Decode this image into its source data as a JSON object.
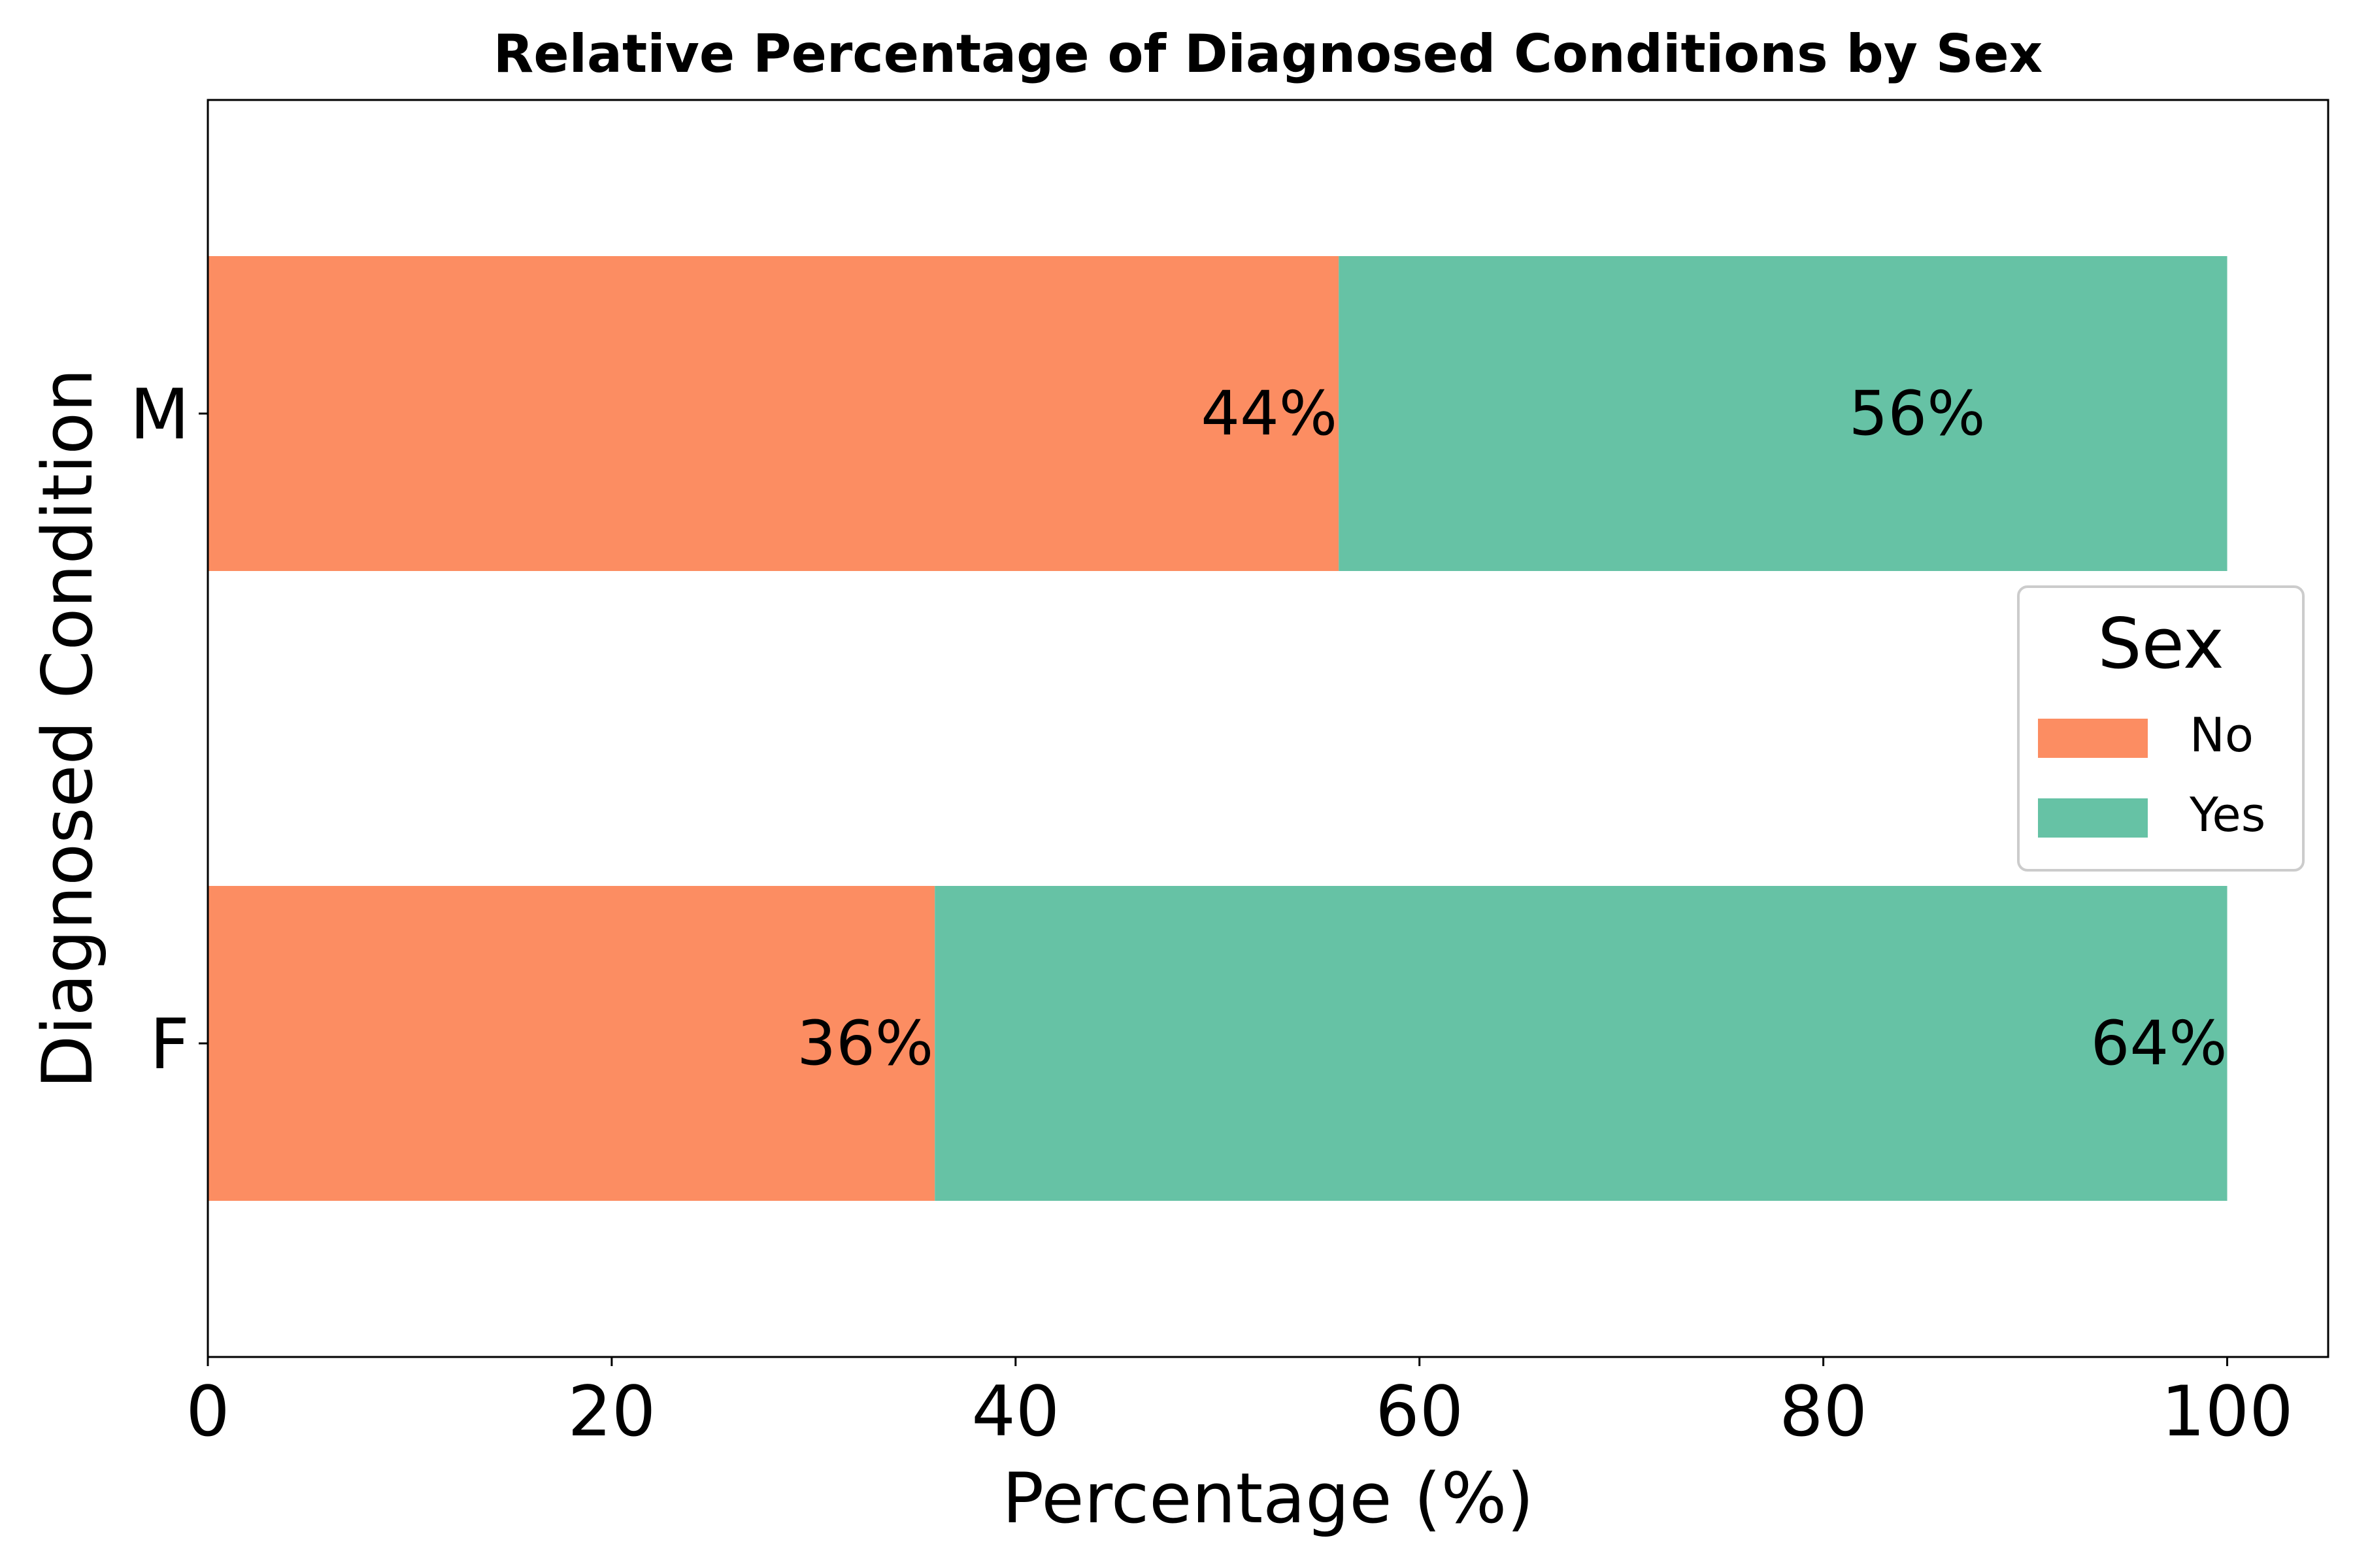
{
  "chart_data": {
    "type": "bar",
    "orientation": "horizontal",
    "stacked": true,
    "title": "Relative Percentage of Diagnosed Conditions by Sex",
    "xlabel": "Percentage (%)",
    "ylabel": "Diagnosed Condition",
    "categories": [
      "F",
      "M"
    ],
    "xlim": [
      0,
      105
    ],
    "xticks": [
      0,
      20,
      40,
      60,
      80,
      100
    ],
    "series": [
      {
        "name": "No",
        "values": [
          36,
          56
        ],
        "color": "#fc8d62"
      },
      {
        "name": "Yes",
        "values": [
          64,
          44
        ],
        "color": "#66c2a5"
      }
    ],
    "data_labels": {
      "F": [
        "36%",
        "64%"
      ],
      "M": [
        "44%",
        "56%"
      ]
    },
    "legend": {
      "title": "Sex",
      "position": "center-right"
    },
    "grid": false
  }
}
